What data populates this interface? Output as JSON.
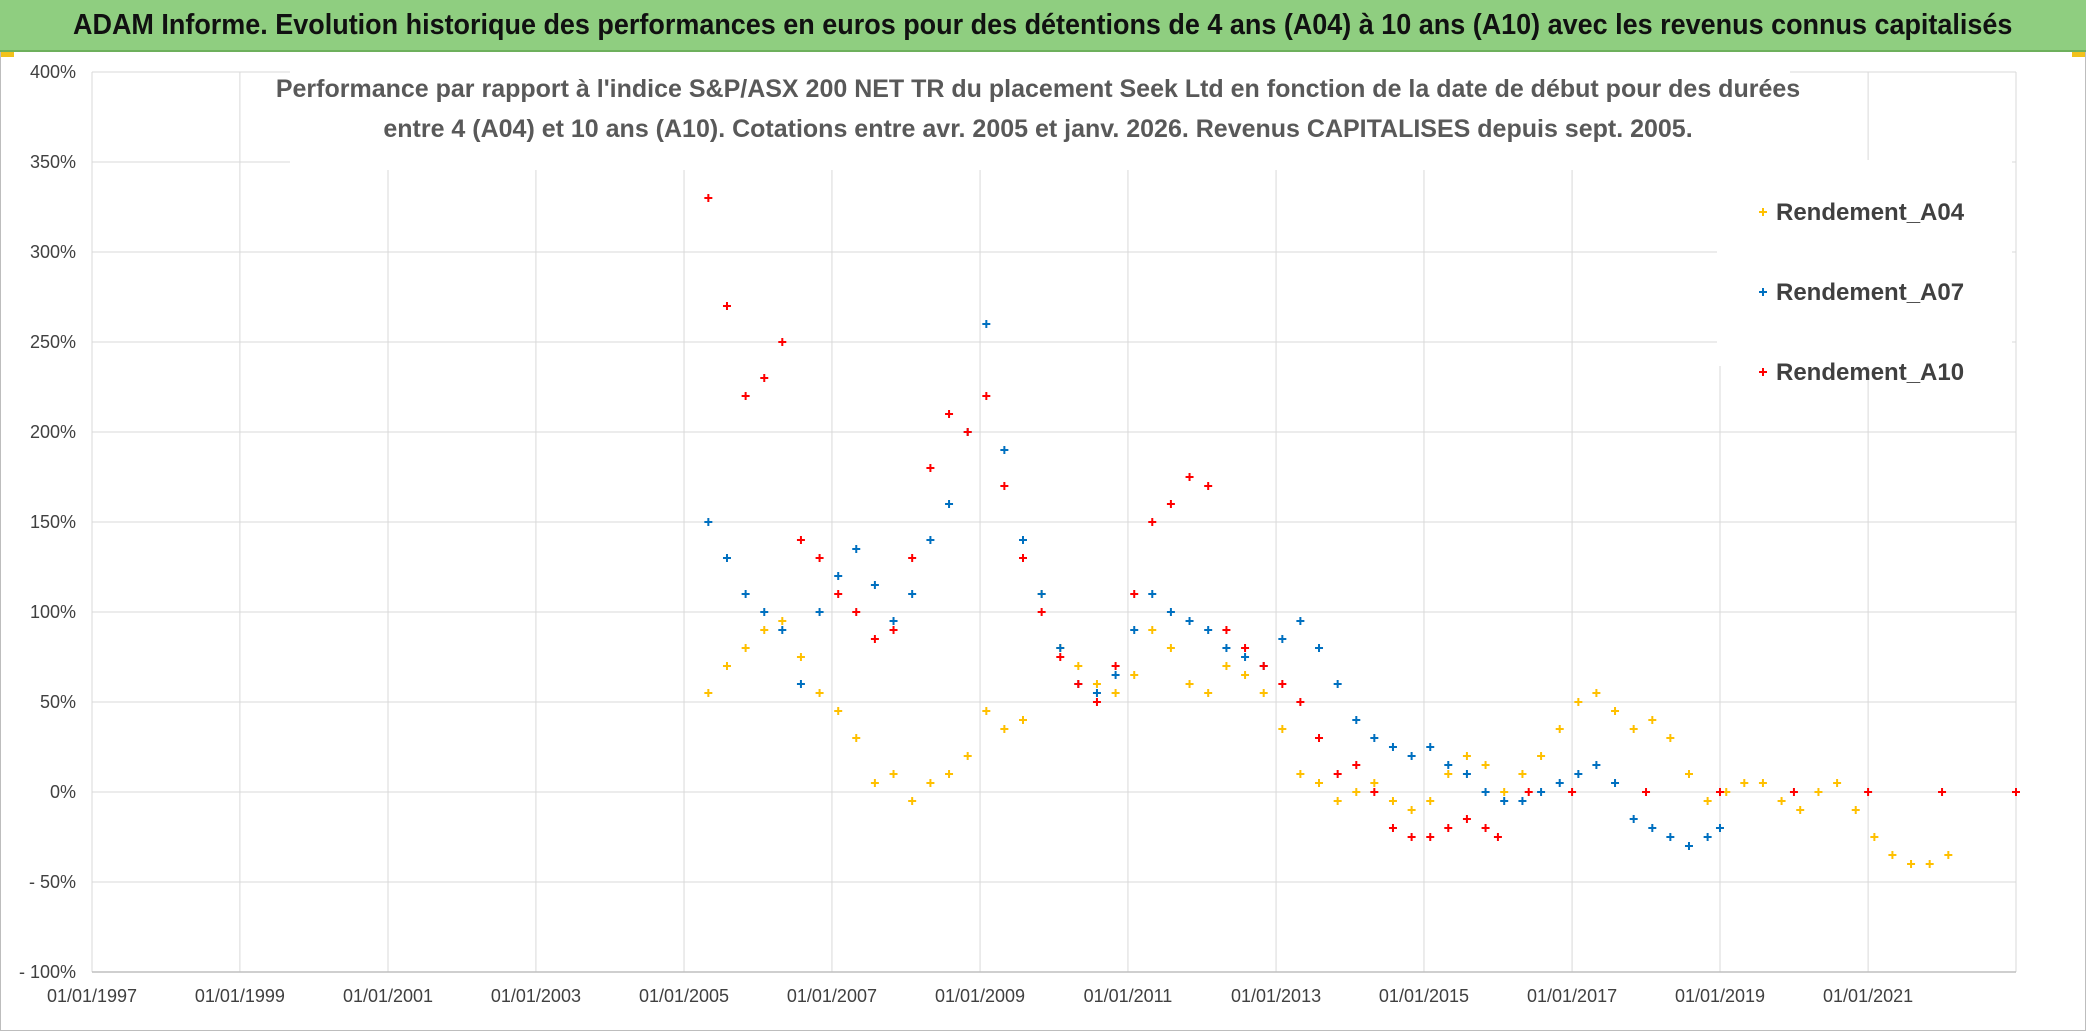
{
  "banner": {
    "title": "ADAM Informe. Evolution historique des performances en euros pour des détentions de 4 ans (A04) à 10 ans (A10) avec les revenus connus capitalisés"
  },
  "colors": {
    "banner_bg": "#8fce80",
    "A04": "#ffc000",
    "A07": "#0070c0",
    "A10": "#ff0000",
    "grid": "#d9d9d9"
  },
  "chart_data": {
    "type": "scatter",
    "title_lines": [
      "Performance par rapport à l'indice S&P/ASX 200 NET TR  du placement Seek Ltd en fonction de la date de début pour des durées",
      "entre 4 (A04) et 10 ans (A10). Cotations entre avr. 2005 et janv. 2026. Revenus CAPITALISES depuis sept. 2005."
    ],
    "xlabel": "",
    "ylabel": "",
    "x_range": [
      "1997-01-01",
      "2023-01-01"
    ],
    "ylim": [
      -100,
      400
    ],
    "y_ticks": [
      "400%",
      "350%",
      "300%",
      "250%",
      "200%",
      "150%",
      "100%",
      "50%",
      "0%",
      "- 50%",
      "- 100%"
    ],
    "y_tick_values": [
      400,
      350,
      300,
      250,
      200,
      150,
      100,
      50,
      0,
      -50,
      -100
    ],
    "x_ticks": [
      "01/01/1997",
      "01/01/1999",
      "01/01/2001",
      "01/01/2003",
      "01/01/2005",
      "01/01/2007",
      "01/01/2009",
      "01/01/2011",
      "01/01/2013",
      "01/01/2015",
      "01/01/2017",
      "01/01/2019",
      "01/01/2021"
    ],
    "x_tick_values": [
      "1997-01-01",
      "1999-01-01",
      "2001-01-01",
      "2003-01-01",
      "2005-01-01",
      "2007-01-01",
      "2009-01-01",
      "2011-01-01",
      "2013-01-01",
      "2015-01-01",
      "2017-01-01",
      "2019-01-01",
      "2021-01-01"
    ],
    "grid": true,
    "legend_position": "top-right",
    "marker": "+",
    "series": [
      {
        "name": "Rendement_A04",
        "color": "#ffc000",
        "x": [
          "2005-05-01",
          "2005-08-01",
          "2005-11-01",
          "2006-02-01",
          "2006-05-01",
          "2006-08-01",
          "2006-11-01",
          "2007-02-01",
          "2007-05-01",
          "2007-08-01",
          "2007-11-01",
          "2008-02-01",
          "2008-05-01",
          "2008-08-01",
          "2008-11-01",
          "2009-02-01",
          "2009-05-01",
          "2009-08-01",
          "2009-11-01",
          "2010-02-01",
          "2010-05-01",
          "2010-08-01",
          "2010-11-01",
          "2011-02-01",
          "2011-05-01",
          "2011-08-01",
          "2011-11-01",
          "2012-02-01",
          "2012-05-01",
          "2012-08-01",
          "2012-11-01",
          "2013-02-01",
          "2013-05-01",
          "2013-08-01",
          "2013-11-01",
          "2014-02-01",
          "2014-05-01",
          "2014-08-01",
          "2014-11-01",
          "2015-02-01",
          "2015-05-01",
          "2015-08-01",
          "2015-11-01",
          "2016-02-01",
          "2016-05-01",
          "2016-08-01",
          "2016-11-01",
          "2017-02-01",
          "2017-05-01",
          "2017-08-01",
          "2017-11-01",
          "2018-02-01",
          "2018-05-01",
          "2018-08-01",
          "2018-11-01",
          "2019-02-01",
          "2019-05-01",
          "2019-08-01",
          "2019-11-01",
          "2020-02-01",
          "2020-05-01",
          "2020-08-01",
          "2020-11-01",
          "2021-02-01",
          "2021-05-01",
          "2021-08-01",
          "2021-11-01",
          "2022-02-01"
        ],
        "values": [
          55,
          70,
          80,
          90,
          95,
          75,
          55,
          45,
          30,
          5,
          10,
          -5,
          5,
          10,
          20,
          45,
          35,
          40,
          110,
          80,
          70,
          60,
          55,
          65,
          90,
          80,
          60,
          55,
          70,
          65,
          55,
          35,
          10,
          5,
          -5,
          0,
          5,
          -5,
          -10,
          -5,
          10,
          20,
          15,
          0,
          10,
          20,
          35,
          50,
          55,
          45,
          35,
          40,
          30,
          10,
          -5,
          0,
          5,
          5,
          -5,
          -10,
          0,
          5,
          -10,
          -25,
          -35,
          -40,
          -40,
          -35
        ]
      },
      {
        "name": "Rendement_A07",
        "color": "#0070c0",
        "x": [
          "2005-05-01",
          "2005-08-01",
          "2005-11-01",
          "2006-02-01",
          "2006-05-01",
          "2006-08-01",
          "2006-11-01",
          "2007-02-01",
          "2007-05-01",
          "2007-08-01",
          "2007-11-01",
          "2008-02-01",
          "2008-05-01",
          "2008-08-01",
          "2008-11-01",
          "2009-02-01",
          "2009-05-01",
          "2009-08-01",
          "2009-11-01",
          "2010-02-01",
          "2010-05-01",
          "2010-08-01",
          "2010-11-01",
          "2011-02-01",
          "2011-05-01",
          "2011-08-01",
          "2011-11-01",
          "2012-02-01",
          "2012-05-01",
          "2012-08-01",
          "2012-11-01",
          "2013-02-01",
          "2013-05-01",
          "2013-08-01",
          "2013-11-01",
          "2014-02-01",
          "2014-05-01",
          "2014-08-01",
          "2014-11-01",
          "2015-02-01",
          "2015-05-01",
          "2015-08-01",
          "2015-11-01",
          "2016-02-01",
          "2016-05-01",
          "2016-08-01",
          "2016-11-01",
          "2017-02-01",
          "2017-05-01",
          "2017-08-01",
          "2017-11-01",
          "2018-02-01",
          "2018-05-01",
          "2018-08-01",
          "2018-11-01",
          "2019-01-01"
        ],
        "values": [
          150,
          130,
          110,
          100,
          90,
          60,
          100,
          120,
          135,
          115,
          95,
          110,
          140,
          160,
          200,
          260,
          190,
          140,
          110,
          80,
          60,
          55,
          65,
          90,
          110,
          100,
          95,
          90,
          80,
          75,
          70,
          85,
          95,
          80,
          60,
          40,
          30,
          25,
          20,
          25,
          15,
          10,
          0,
          -5,
          -5,
          0,
          5,
          10,
          15,
          5,
          -15,
          -20,
          -25,
          -30,
          -25,
          -20
        ]
      },
      {
        "name": "Rendement_A10",
        "color": "#ff0000",
        "x": [
          "2005-05-01",
          "2005-08-01",
          "2005-11-01",
          "2006-02-01",
          "2006-05-01",
          "2006-08-01",
          "2006-11-01",
          "2007-02-01",
          "2007-05-01",
          "2007-08-01",
          "2007-11-01",
          "2008-02-01",
          "2008-05-01",
          "2008-08-01",
          "2008-11-01",
          "2009-02-01",
          "2009-05-01",
          "2009-08-01",
          "2009-11-01",
          "2010-02-01",
          "2010-05-01",
          "2010-08-01",
          "2010-11-01",
          "2011-02-01",
          "2011-05-01",
          "2011-08-01",
          "2011-11-01",
          "2012-02-01",
          "2012-05-01",
          "2012-08-01",
          "2012-11-01",
          "2013-02-01",
          "2013-05-01",
          "2013-08-01",
          "2013-11-01",
          "2014-02-01",
          "2014-05-01",
          "2014-08-01",
          "2014-11-01",
          "2015-02-01",
          "2015-05-01",
          "2015-08-01",
          "2015-11-01",
          "2016-01-01",
          "2016-06-01",
          "2017-01-01",
          "2018-01-01",
          "2019-01-01",
          "2020-01-01",
          "2021-01-01",
          "2022-01-01",
          "2023-01-01"
        ],
        "values": [
          330,
          270,
          220,
          230,
          250,
          140,
          130,
          110,
          100,
          85,
          90,
          130,
          180,
          210,
          200,
          220,
          170,
          130,
          100,
          75,
          60,
          50,
          70,
          110,
          150,
          160,
          175,
          170,
          90,
          80,
          70,
          60,
          50,
          30,
          10,
          15,
          0,
          -20,
          -25,
          -25,
          -20,
          -15,
          -20,
          -25,
          0,
          0,
          0,
          0,
          0,
          0,
          0,
          0
        ]
      }
    ]
  }
}
